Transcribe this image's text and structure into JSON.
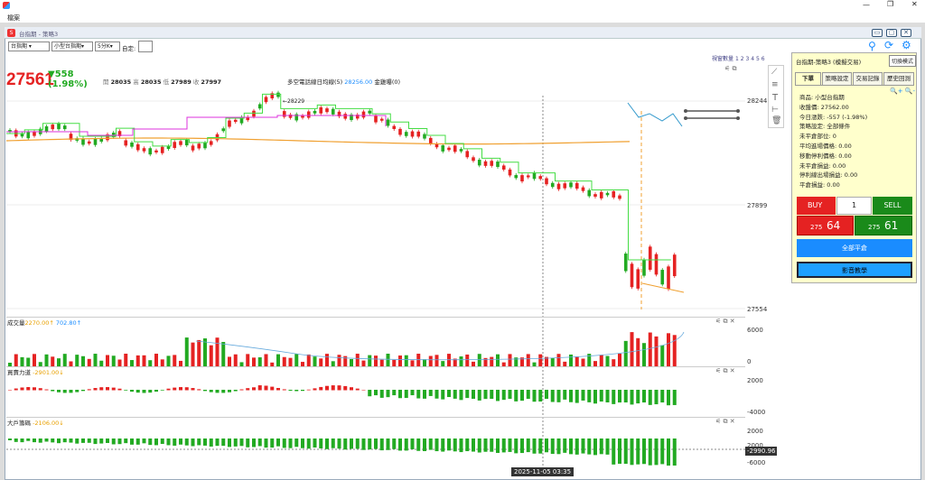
{
  "titlebar": {
    "icon": "app-icon",
    "min": "—",
    "max": "❐",
    "close": "✕"
  },
  "menu": {
    "file": "檔案"
  },
  "child": {
    "title": "台指期 - 策略3"
  },
  "toolbar": {
    "symbol": "台指期",
    "contract": "小型台指期",
    "period": "5分K",
    "custom_label": "自定:",
    "custom_value": ""
  },
  "quote": {
    "price": "27561",
    "change": "▼558",
    "pct": "(1.98%)",
    "open_label": "開",
    "open": "28035",
    "high_label": "高",
    "high": "28035",
    "low_label": "低",
    "low": "27989",
    "close_label": "收",
    "close": "27997"
  },
  "indicator": {
    "label": "多空電話線日均線(5)",
    "value": "28256.00",
    "extra": "金雞曝(0)"
  },
  "view_count": {
    "label": "視窗數量",
    "nums": [
      "1",
      "2",
      "3",
      "4",
      "5",
      "6"
    ]
  },
  "price_axis": {
    "ticks": [
      "28244",
      "27899",
      "27554"
    ],
    "peak_label": "←28229"
  },
  "volume": {
    "title": "成交量",
    "v1": "2270.00↑",
    "v2": "702.80↑",
    "ticks": [
      "6000",
      "0"
    ]
  },
  "power": {
    "title": "買賣力道",
    "v1": "-2901.00↓",
    "ticks": [
      "2000",
      "-4000"
    ]
  },
  "big": {
    "title": "大戶籌碼",
    "v1": "-2106.00↓",
    "ticks": [
      "2000",
      "2000",
      "-6000"
    ],
    "cursor_val": "-2990.96"
  },
  "time_cursor": "2025-11-05  03:35",
  "panel": {
    "header": "台指期-策略3 (模擬交易)",
    "switch": "切換模式",
    "tabs": [
      "下單",
      "策略設定",
      "交易記錄",
      "歷史回測"
    ],
    "lines": [
      "商品: 小型台指期",
      "收盤價: 27562.00",
      "今日漲跌: -557 (-1.98%)",
      "策略設定: 全部條件",
      "未平倉部位: 0",
      "平均進場價格: 0.00",
      "移動停利價格: 0.00",
      "未平倉損益: 0.00",
      "停利線出場損益: 0.00",
      "平倉損益: 0.00"
    ],
    "buy": "BUY",
    "sell": "SELL",
    "qty": "1",
    "bid_small": "275",
    "bid_big": "64",
    "ask_small": "275",
    "ask_big": "61",
    "close_all": "全部平倉",
    "tutorial": "影音教學"
  },
  "colors": {
    "up": "#e52222",
    "down": "#22aa22",
    "panel_bg": "#ffffcc",
    "accent": "#1a8cff"
  }
}
